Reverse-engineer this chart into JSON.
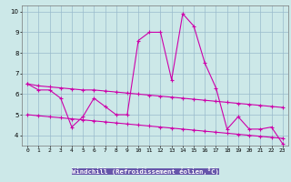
{
  "xlabel": "Windchill (Refroidissement éolien,°C)",
  "background_color": "#cce8e8",
  "grid_color": "#99bbcc",
  "line_color": "#cc00aa",
  "hours": [
    0,
    1,
    2,
    3,
    4,
    5,
    6,
    7,
    8,
    9,
    10,
    11,
    12,
    13,
    14,
    15,
    16,
    17,
    18,
    19,
    20,
    21,
    22,
    23
  ],
  "main_line": [
    6.5,
    6.2,
    6.2,
    5.8,
    4.4,
    4.9,
    5.8,
    5.4,
    5.0,
    5.0,
    8.6,
    9.0,
    9.0,
    6.7,
    9.9,
    9.3,
    7.5,
    6.3,
    4.3,
    4.9,
    4.3,
    4.3,
    4.4,
    3.6
  ],
  "upper_line": [
    6.5,
    6.4,
    6.35,
    6.3,
    6.25,
    6.2,
    6.2,
    6.15,
    6.1,
    6.05,
    6.0,
    5.95,
    5.9,
    5.85,
    5.8,
    5.75,
    5.7,
    5.65,
    5.6,
    5.55,
    5.5,
    5.45,
    5.4,
    5.35
  ],
  "lower_line": [
    5.0,
    4.95,
    4.9,
    4.85,
    4.8,
    4.75,
    4.7,
    4.65,
    4.6,
    4.55,
    4.5,
    4.45,
    4.4,
    4.35,
    4.3,
    4.25,
    4.2,
    4.15,
    4.1,
    4.05,
    4.0,
    3.95,
    3.9,
    3.85
  ],
  "ylim": [
    3.5,
    10.3
  ],
  "yticks": [
    4,
    5,
    6,
    7,
    8,
    9,
    10
  ],
  "xticks": [
    0,
    1,
    2,
    3,
    4,
    5,
    6,
    7,
    8,
    9,
    10,
    11,
    12,
    13,
    14,
    15,
    16,
    17,
    18,
    19,
    20,
    21,
    22,
    23
  ],
  "xlabel_bg": "#6655aa",
  "tick_fontsize": 4.5,
  "marker_size": 2.5,
  "lw": 0.8
}
